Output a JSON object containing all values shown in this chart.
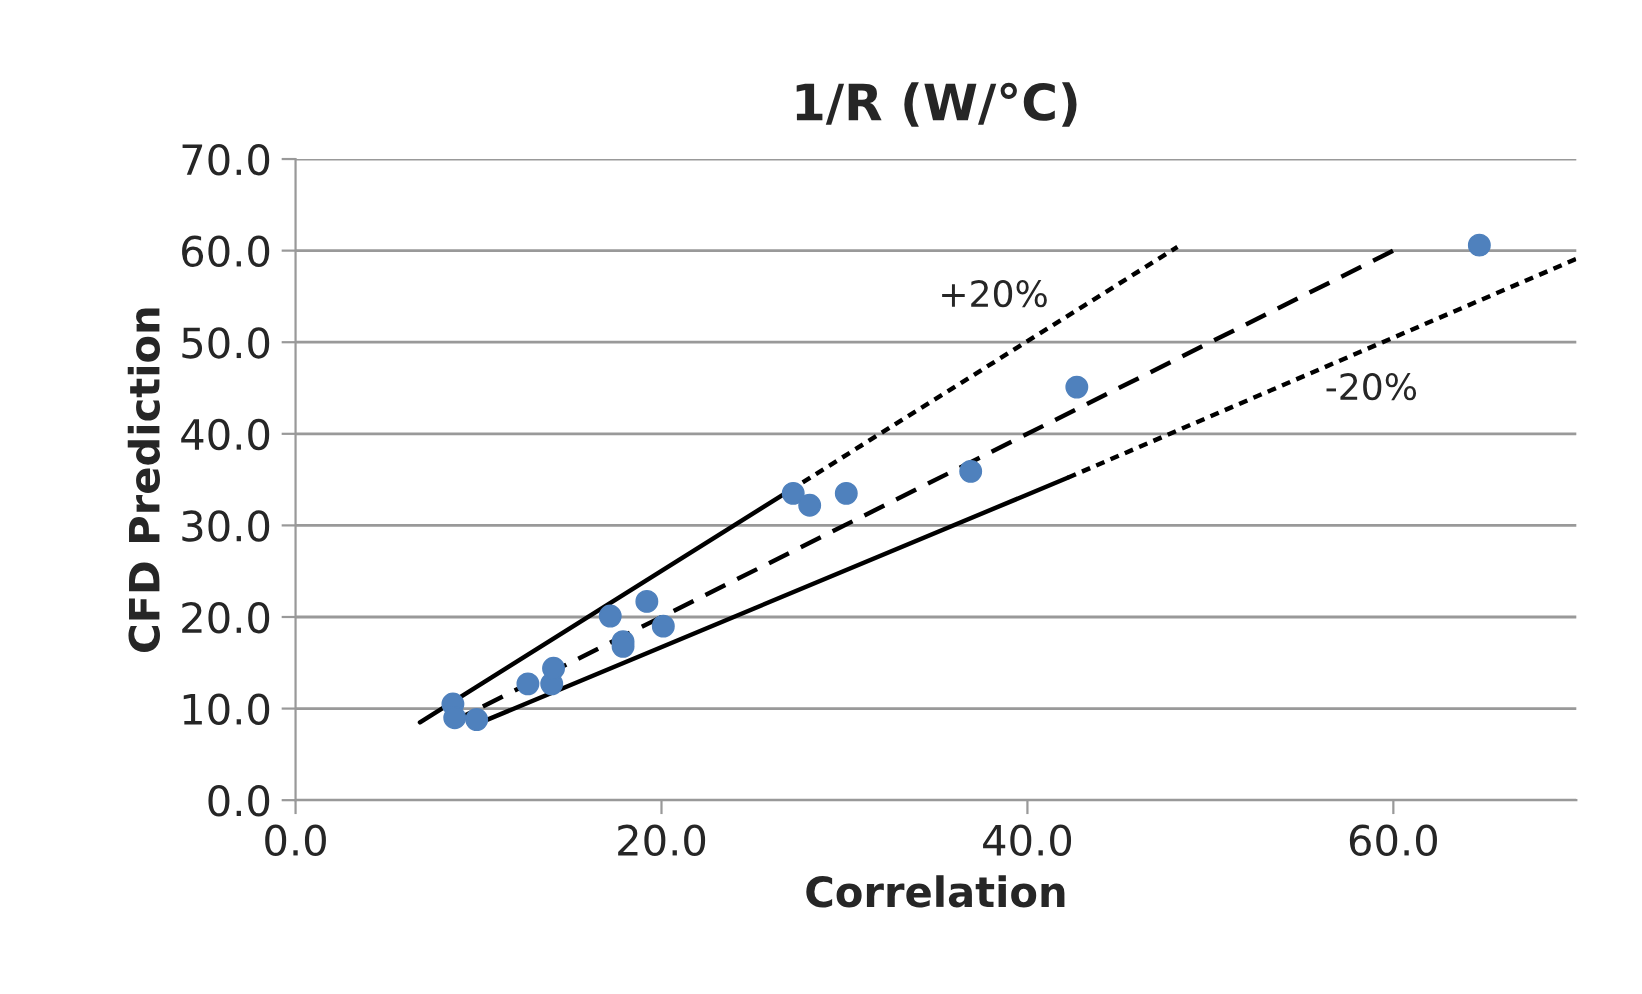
{
  "chart_data": {
    "type": "scatter",
    "title": "1/R (W/°C)",
    "xlabel": "Correlation",
    "ylabel": "CFD Prediction",
    "xlim": [
      0,
      70
    ],
    "ylim": [
      0,
      70
    ],
    "xticks": [
      {
        "value": 0,
        "label": "0.0"
      },
      {
        "value": 20,
        "label": "20.0"
      },
      {
        "value": 40,
        "label": "40.0"
      },
      {
        "value": 60,
        "label": "60.0"
      }
    ],
    "yticks": [
      {
        "value": 0,
        "label": "0.0"
      },
      {
        "value": 10,
        "label": "10.0"
      },
      {
        "value": 20,
        "label": "20.0"
      },
      {
        "value": 30,
        "label": "30.0"
      },
      {
        "value": 40,
        "label": "40.0"
      },
      {
        "value": 50,
        "label": "50.0"
      },
      {
        "value": 60,
        "label": "60.0"
      },
      {
        "value": 70,
        "label": "70.0"
      }
    ],
    "grid": "y",
    "legend": false,
    "series": [
      {
        "color": "#4f81bd",
        "marker": "circle",
        "x": [
          8.6,
          8.7,
          9.9,
          12.7,
          14.0,
          14.1,
          17.2,
          17.9,
          17.9,
          19.2,
          20.1,
          27.2,
          28.1,
          30.1,
          36.9,
          42.7,
          64.7
        ],
        "values": [
          10.5,
          9.0,
          8.8,
          12.7,
          12.7,
          14.4,
          20.1,
          17.3,
          16.8,
          21.7,
          19.0,
          33.5,
          32.2,
          33.5,
          35.9,
          45.1,
          60.6
        ]
      },
      {
        "type": "line",
        "color": "#000000",
        "marker": "none",
        "line_style": "solid",
        "x": [
          6.8,
          27.0
        ],
        "values": [
          8.5,
          33.8
        ]
      },
      {
        "type": "line",
        "color": "#000000",
        "marker": "none",
        "line_style": "dotted",
        "x": [
          27.0,
          48.2
        ],
        "values": [
          33.8,
          60.4
        ]
      },
      {
        "type": "line",
        "color": "#000000",
        "marker": "none",
        "line_style": "dashed",
        "x": [
          8.5,
          60.2
        ],
        "values": [
          8.5,
          60.2
        ]
      },
      {
        "type": "line",
        "color": "#000000",
        "marker": "none",
        "line_style": "solid",
        "x": [
          9.9,
          42.2
        ],
        "values": [
          8.3,
          35.2
        ]
      },
      {
        "type": "line",
        "color": "#000000",
        "marker": "none",
        "line_style": "dotted",
        "x": [
          42.2,
          70.0
        ],
        "values": [
          35.2,
          59.1
        ]
      }
    ],
    "annotations": [
      "+20%",
      "-20%"
    ]
  }
}
